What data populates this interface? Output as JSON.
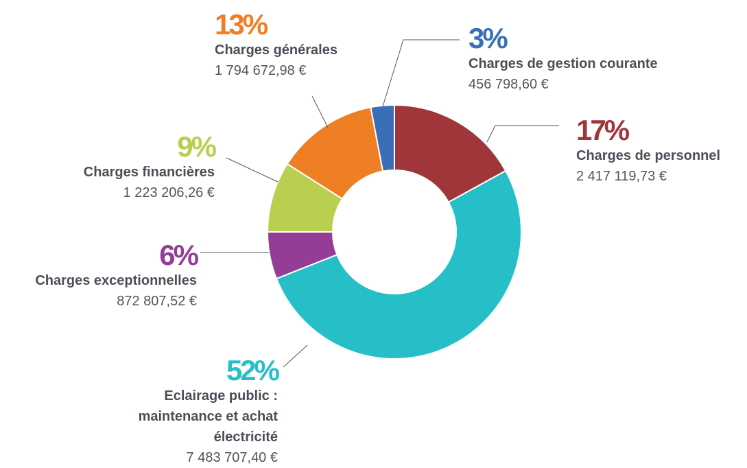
{
  "chart_data": {
    "type": "donut",
    "categories": [
      "Charges de personnel",
      "Eclairage public : maintenance et achat électricité",
      "Charges exceptionnelles",
      "Charges financières",
      "Charges générales",
      "Charges de gestion courante"
    ],
    "values": [
      17,
      52,
      6,
      9,
      13,
      3
    ],
    "value_labels": [
      "17%",
      "52%",
      "6%",
      "9%",
      "13%",
      "3%"
    ],
    "amount_labels": [
      "2 417 119,73 €",
      "7 483 707,40 €",
      "872 807,52 €",
      "1 223 206,26 €",
      "1 794 672,98 €",
      "456 798,60 €"
    ],
    "colors": [
      "#a0353a",
      "#27bfc7",
      "#943c96",
      "#b8cf4f",
      "#ef7f25",
      "#3a6fb7"
    ]
  }
}
